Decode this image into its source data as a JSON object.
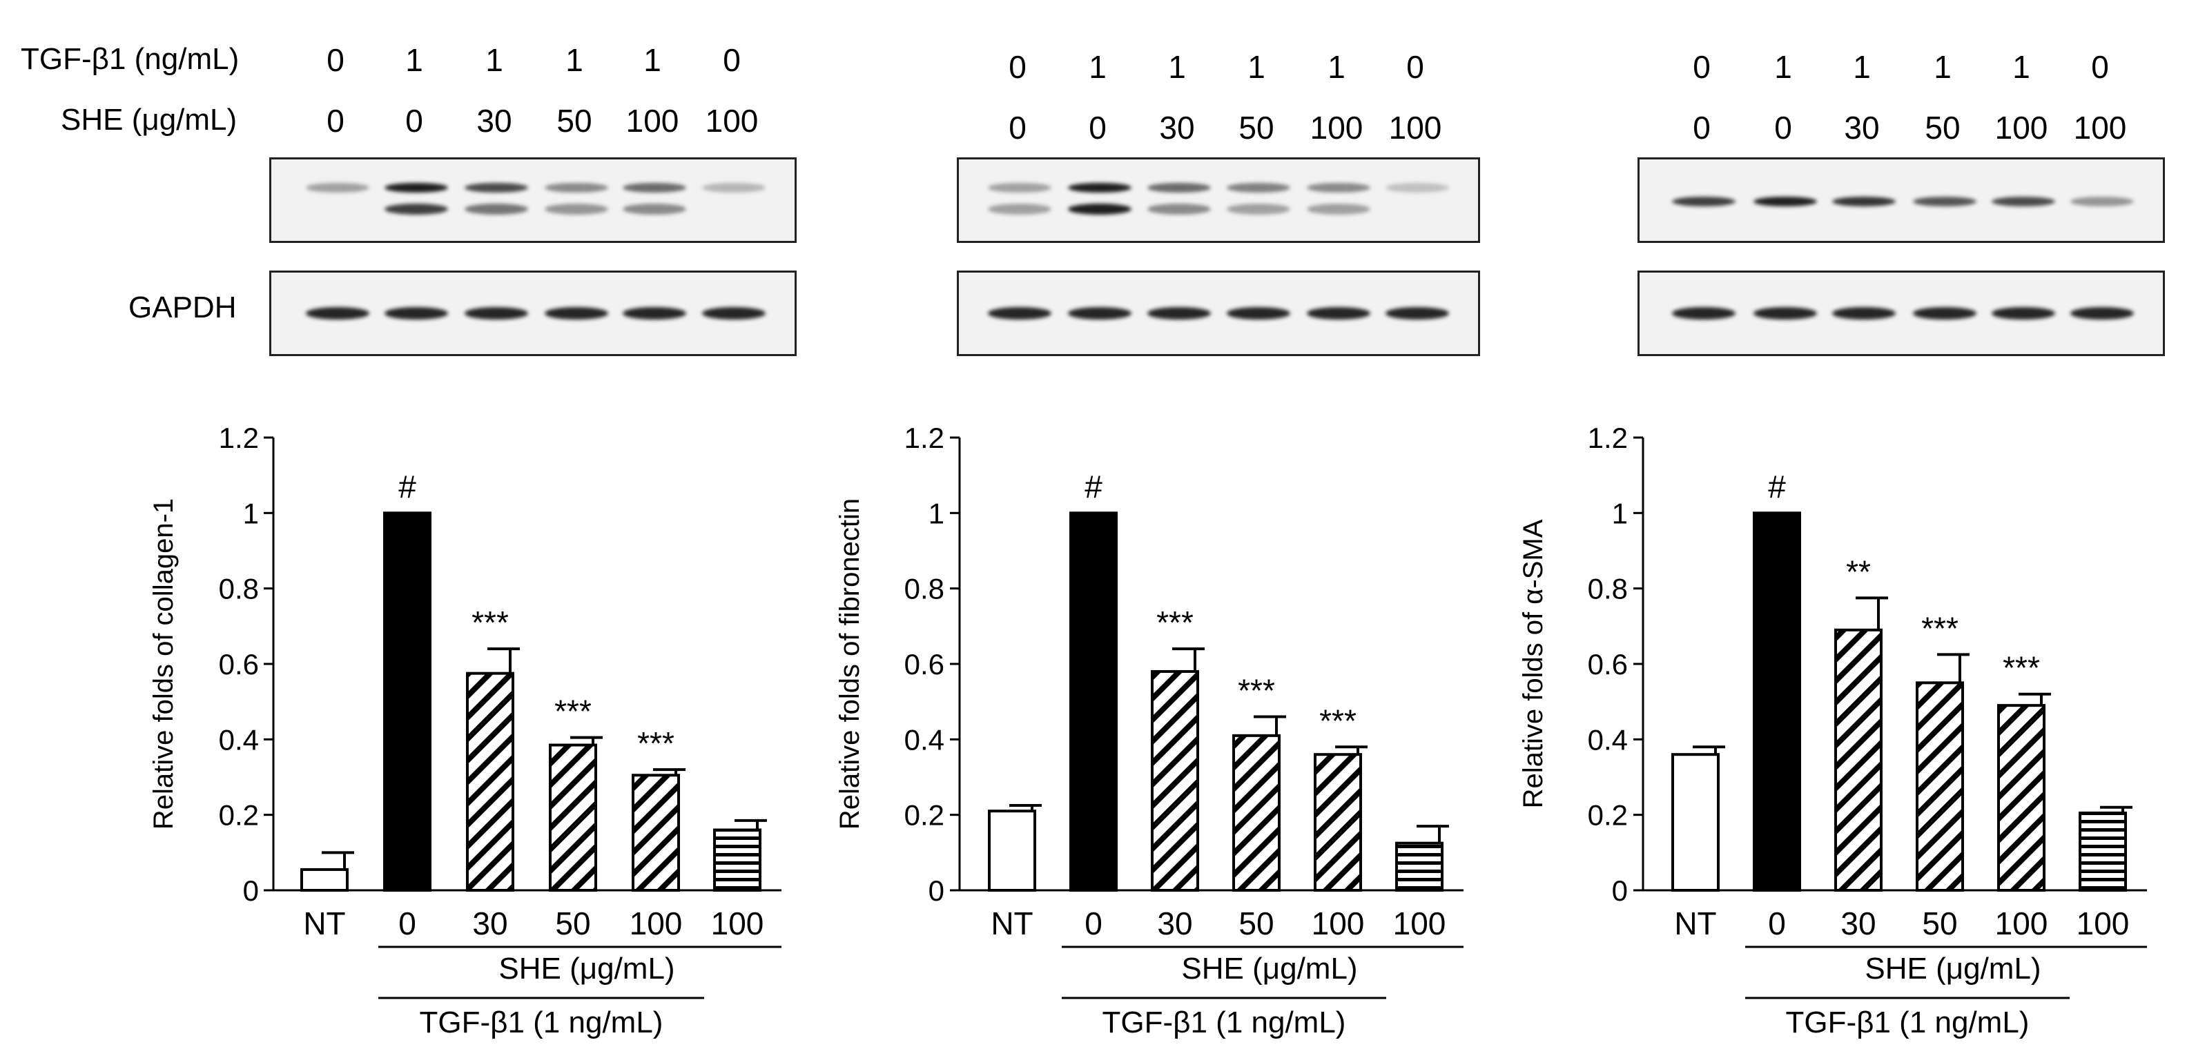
{
  "header": {
    "tgf_label": "TGF-β1 (ng/mL)",
    "she_label": "SHE (μg/mL)",
    "tgf_values": [
      "0",
      "1",
      "1",
      "1",
      "1",
      "0"
    ],
    "she_values": [
      "0",
      "0",
      "30",
      "50",
      "100",
      "100"
    ],
    "gapdh_label": "GAPDH"
  },
  "chart_data": [
    {
      "type": "bar",
      "categories": [
        "NT",
        "0",
        "30",
        "50",
        "100",
        "100"
      ],
      "values": [
        0.055,
        1.0,
        0.575,
        0.385,
        0.305,
        0.16
      ],
      "errors": [
        0.045,
        0,
        0.065,
        0.02,
        0.015,
        0.025
      ],
      "annotations": [
        "",
        "#",
        "***",
        "***",
        "***",
        ""
      ],
      "ylabel": "Relative folds of collagen-1",
      "ylim": [
        0,
        1.2
      ],
      "yticks": [
        "0",
        "0.2",
        "0.4",
        "0.6",
        "0.8",
        "1",
        "1.2"
      ],
      "group_label_she": "SHE (μg/mL)",
      "group_label_tgf": "TGF-β1 (1 ng/mL)"
    },
    {
      "type": "bar",
      "categories": [
        "NT",
        "0",
        "30",
        "50",
        "100",
        "100"
      ],
      "values": [
        0.21,
        1.0,
        0.58,
        0.41,
        0.36,
        0.125
      ],
      "errors": [
        0.015,
        0,
        0.06,
        0.05,
        0.02,
        0.045
      ],
      "annotations": [
        "",
        "#",
        "***",
        "***",
        "***",
        ""
      ],
      "ylabel": "Relative folds of fibronectin",
      "ylim": [
        0,
        1.2
      ],
      "yticks": [
        "0",
        "0.2",
        "0.4",
        "0.6",
        "0.8",
        "1",
        "1.2"
      ],
      "group_label_she": "SHE (μg/mL)",
      "group_label_tgf": "TGF-β1 (1 ng/mL)"
    },
    {
      "type": "bar",
      "categories": [
        "NT",
        "0",
        "30",
        "50",
        "100",
        "100"
      ],
      "values": [
        0.36,
        1.0,
        0.69,
        0.55,
        0.49,
        0.205
      ],
      "errors": [
        0.02,
        0,
        0.085,
        0.075,
        0.03,
        0.015
      ],
      "annotations": [
        "",
        "#",
        "**",
        "***",
        "***",
        ""
      ],
      "ylabel": "Relative folds of α-SMA",
      "ylim": [
        0,
        1.2
      ],
      "yticks": [
        "0",
        "0.2",
        "0.4",
        "0.6",
        "0.8",
        "1",
        "1.2"
      ],
      "group_label_she": "SHE (μg/mL)",
      "group_label_tgf": "TGF-β1 (1 ng/mL)"
    }
  ]
}
